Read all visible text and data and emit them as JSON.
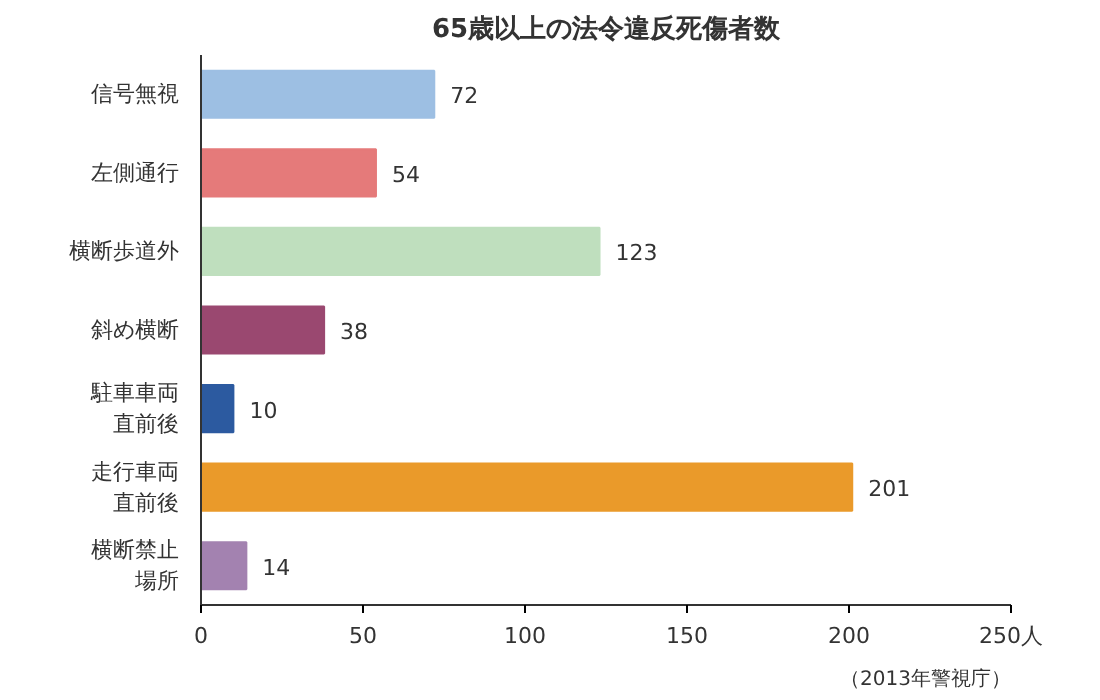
{
  "chart_data": {
    "type": "bar",
    "orientation": "horizontal",
    "title": "65歳以上の法令違反死傷者数",
    "categories": [
      "信号無視",
      "左側通行",
      "横断歩道外",
      "斜め横断",
      "駐車車両直前後",
      "走行車両直前後",
      "横断禁止場所"
    ],
    "values": [
      72,
      54,
      123,
      38,
      10,
      201,
      14
    ],
    "colors": [
      "#9dbfe3",
      "#e57a7a",
      "#bfdfbe",
      "#9a4870",
      "#2c5aa0",
      "#ea9a2a",
      "#a382b0"
    ],
    "xlim": [
      0,
      250
    ],
    "xticks": [
      0,
      50,
      100,
      150,
      200,
      {
        "value": 250,
        "label": "250人"
      }
    ],
    "grid": false,
    "data_labels": true,
    "annotations": [
      "（2013年警視庁）"
    ]
  }
}
